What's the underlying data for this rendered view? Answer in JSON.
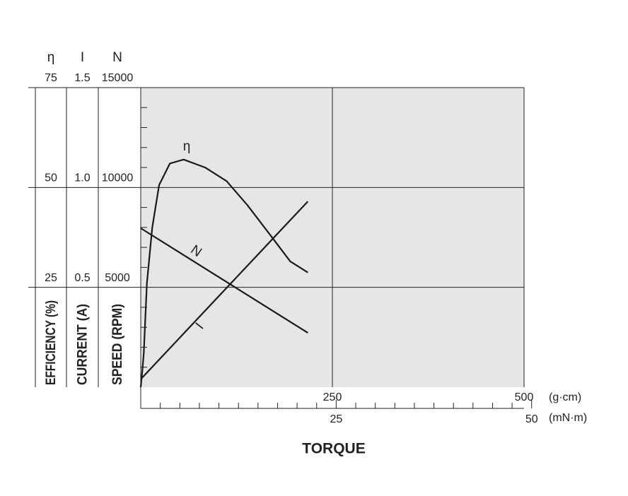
{
  "chart_data": {
    "type": "line",
    "x_label": "TORQUE",
    "x_unit": "(g·cm)",
    "x2_unit": "(mN·m)",
    "xlim": [
      0,
      500
    ],
    "xticks": [
      250,
      500
    ],
    "x2lim": [
      0,
      49.03
    ],
    "x2ticks": [
      25,
      50
    ],
    "x2minor_ticks": [
      2.5,
      5,
      7.5,
      10,
      12.5,
      15,
      17.5,
      20,
      22.5,
      27.5,
      30,
      32.5,
      35,
      37.5,
      40,
      42.5,
      45,
      47.5
    ],
    "grid": true,
    "yaxes": [
      {
        "symbol": "η",
        "label": "EFFICIENCY (%)",
        "lim": [
          0,
          75
        ],
        "ticks": [
          25,
          50,
          75
        ]
      },
      {
        "symbol": "I",
        "label": "CURRENT (A)",
        "lim": [
          0,
          1.5
        ],
        "ticks": [
          0.5,
          {
            "value": 1,
            "label": "1.0"
          },
          1.5
        ]
      },
      {
        "symbol": "N",
        "label": "SPEED (RPM)",
        "lim": [
          0,
          15000
        ],
        "ticks": [
          5000,
          10000,
          15000
        ],
        "minor_ticks": [
          1000,
          2000,
          3000,
          4000,
          6000,
          7000,
          8000,
          9000,
          11000,
          12000,
          13000,
          14000
        ]
      }
    ],
    "series": [
      {
        "name": "η",
        "axis": 0,
        "color": "#1a1a1a",
        "x": [
          0,
          2,
          4,
          8,
          15,
          24,
          38,
          56,
          84,
          112,
          139,
          167,
          195,
          218
        ],
        "values": [
          0,
          4,
          8.5,
          26,
          40,
          50.6,
          56,
          57,
          55,
          51.6,
          45.6,
          38.6,
          31.5,
          28.7
        ]
      },
      {
        "name": "N",
        "axis": 2,
        "color": "#1a1a1a",
        "x": [
          0,
          218
        ],
        "values": [
          7960,
          2720
        ]
      },
      {
        "name": "I",
        "axis": 1,
        "color": "#1a1a1a",
        "x": [
          0,
          218
        ],
        "values": [
          0.04,
          0.93
        ]
      }
    ]
  }
}
